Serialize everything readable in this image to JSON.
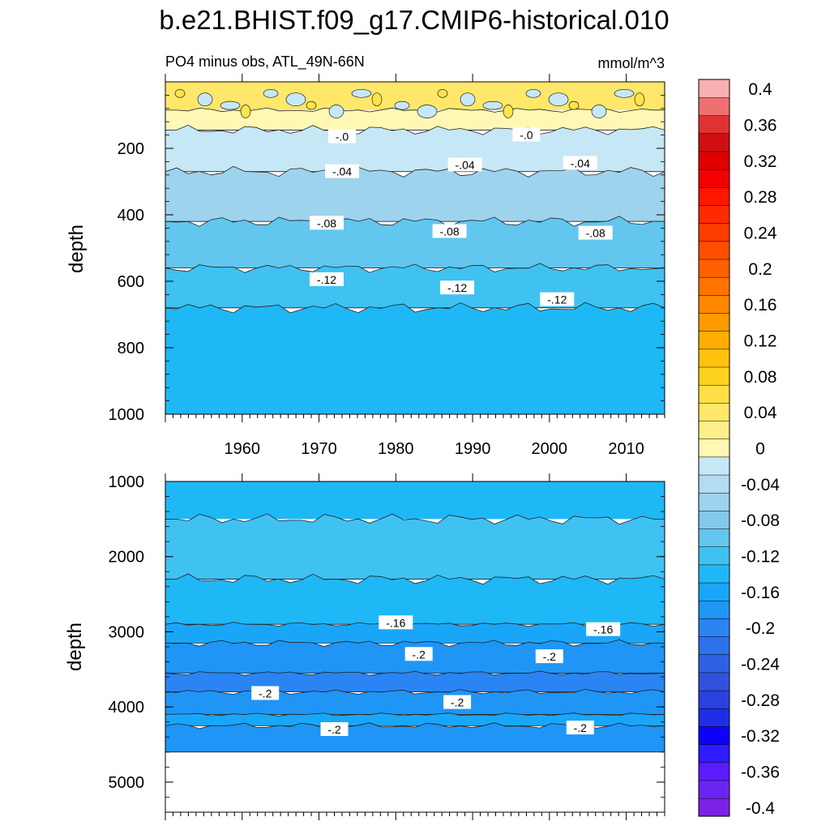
{
  "chart_data": {
    "type": "contour",
    "title": "b.e21.BHIST.f09_g17.CMIP6-historical.010",
    "subtitle_left": "PO4 minus obs, ATL_49N-66N",
    "subtitle_right": "mmol/m^3",
    "units": "mmol/m^3",
    "xrange": [
      1950,
      2015
    ],
    "xticks": [
      1960,
      1970,
      1980,
      1990,
      2000,
      2010
    ],
    "panels": [
      {
        "name": "upper",
        "ylabel": "depth",
        "yrange": [
          0,
          1000
        ],
        "yticks": [
          200,
          400,
          600,
          800,
          1000
        ],
        "bands": [
          {
            "top": 0,
            "value": 0.02
          },
          {
            "top": 85,
            "value": -0.01
          },
          {
            "top": 145,
            "value": -0.04
          },
          {
            "top": 270,
            "value": -0.08
          },
          {
            "top": 420,
            "value": -0.12
          },
          {
            "top": 560,
            "value": -0.14
          },
          {
            "top": 680,
            "value": -0.16
          }
        ],
        "contour_labels": [
          {
            "text": "-.0",
            "x": 1973,
            "depth": 165
          },
          {
            "text": "-.0",
            "x": 1997,
            "depth": 160
          },
          {
            "text": "-.04",
            "x": 1973,
            "depth": 270
          },
          {
            "text": "-.04",
            "x": 1989,
            "depth": 250
          },
          {
            "text": "-.04",
            "x": 2004,
            "depth": 245
          },
          {
            "text": "-.08",
            "x": 1971,
            "depth": 425
          },
          {
            "text": "-.08",
            "x": 1987,
            "depth": 450
          },
          {
            "text": "-.08",
            "x": 2006,
            "depth": 455
          },
          {
            "text": "-.12",
            "x": 1971,
            "depth": 595
          },
          {
            "text": "-.12",
            "x": 1988,
            "depth": 620
          },
          {
            "text": "-.12",
            "x": 2001,
            "depth": 655
          }
        ]
      },
      {
        "name": "lower",
        "ylabel": "depth",
        "yrange": [
          1000,
          5400
        ],
        "yticks": [
          1000,
          2000,
          3000,
          4000,
          5000
        ],
        "data_bottom": 4600,
        "bands": [
          {
            "top": 1000,
            "value": -0.16
          },
          {
            "top": 1500,
            "value": -0.14
          },
          {
            "top": 2300,
            "value": -0.16
          },
          {
            "top": 2900,
            "value": -0.18
          },
          {
            "top": 3150,
            "value": -0.2
          },
          {
            "top": 3550,
            "value": -0.22
          },
          {
            "top": 3800,
            "value": -0.2
          },
          {
            "top": 4100,
            "value": -0.18
          },
          {
            "top": 4250,
            "value": -0.2
          }
        ],
        "contour_labels": [
          {
            "text": "-.16",
            "x": 1980,
            "depth": 2880
          },
          {
            "text": "-.16",
            "x": 2007,
            "depth": 2970
          },
          {
            "text": "-.2",
            "x": 1983,
            "depth": 3300
          },
          {
            "text": "-.2",
            "x": 2000,
            "depth": 3330
          },
          {
            "text": "-.2",
            "x": 1963,
            "depth": 3820
          },
          {
            "text": "-.2",
            "x": 1988,
            "depth": 3940
          },
          {
            "text": "-.2",
            "x": 1972,
            "depth": 4300
          },
          {
            "text": "-.2",
            "x": 2004,
            "depth": 4280
          }
        ]
      }
    ],
    "colorbar": {
      "levels": [
        -0.4,
        -0.38,
        -0.36,
        -0.34,
        -0.32,
        -0.3,
        -0.28,
        -0.26,
        -0.24,
        -0.22,
        -0.2,
        -0.18,
        -0.16,
        -0.14,
        -0.12,
        -0.1,
        -0.08,
        -0.06,
        -0.04,
        -0.02,
        0,
        0.02,
        0.04,
        0.06,
        0.08,
        0.1,
        0.12,
        0.14,
        0.16,
        0.18,
        0.2,
        0.22,
        0.24,
        0.26,
        0.28,
        0.3,
        0.32,
        0.34,
        0.36,
        0.38,
        0.4
      ],
      "labels": [
        "0.4",
        "0.36",
        "0.32",
        "0.28",
        "0.24",
        "0.2",
        "0.16",
        "0.12",
        "0.08",
        "0.04",
        "0",
        "-0.04",
        "-0.08",
        "-0.12",
        "-0.16",
        "-0.2",
        "-0.24",
        "-0.28",
        "-0.32",
        "-0.36",
        "-0.4"
      ],
      "colors": [
        "#7c22e6",
        "#6a25f2",
        "#5a1cff",
        "#2e1bff",
        "#0d00ff",
        "#1f2ee6",
        "#2a40e0",
        "#3052de",
        "#2e62e4",
        "#2b72ec",
        "#2a84f3",
        "#1f95f6",
        "#1aa6f8",
        "#1fb8f6",
        "#3fc2f2",
        "#62c6ef",
        "#84c9ec",
        "#9ed3ee",
        "#b2dcf1",
        "#c6e7f6",
        "#fff8b5",
        "#ffef8a",
        "#ffe76a",
        "#ffdf45",
        "#ffd21f",
        "#ffc20c",
        "#ffae00",
        "#ff9a00",
        "#ff8700",
        "#ff7300",
        "#ff6000",
        "#ff4e00",
        "#ff3c00",
        "#ff2a00",
        "#ff1500",
        "#f20000",
        "#e00000",
        "#d01010",
        "#e03232",
        "#ee7070",
        "#f8b0b0"
      ]
    }
  }
}
